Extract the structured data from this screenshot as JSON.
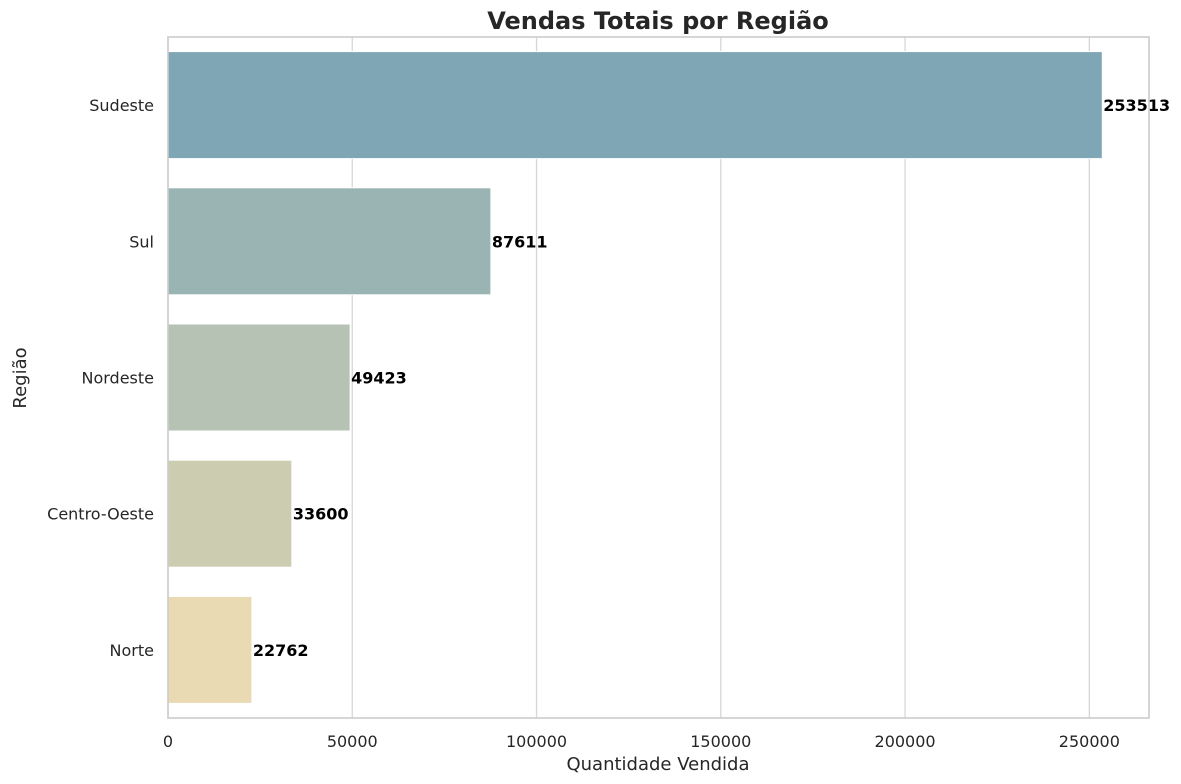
{
  "chart_data": {
    "type": "bar",
    "orientation": "horizontal",
    "title": "Vendas Totais por Região",
    "xlabel": "Quantidade Vendida",
    "ylabel": "Região",
    "categories": [
      "Sudeste",
      "Sul",
      "Nordeste",
      "Centro-Oeste",
      "Norte"
    ],
    "values": [
      253513,
      87611,
      49423,
      33600,
      22762
    ],
    "value_labels": [
      "253513",
      "87611",
      "49423",
      "33600",
      "22762"
    ],
    "bar_colors": [
      "#7fa6b4",
      "#99b4b3",
      "#b6c2b4",
      "#ccccb1",
      "#e9dab3"
    ],
    "xticks": [
      0,
      50000,
      100000,
      150000,
      200000,
      250000
    ],
    "xtick_labels": [
      "0",
      "50000",
      "100000",
      "150000",
      "200000",
      "250000"
    ],
    "xlim": [
      0,
      266189
    ],
    "grid": "vertical",
    "legend": "none"
  }
}
